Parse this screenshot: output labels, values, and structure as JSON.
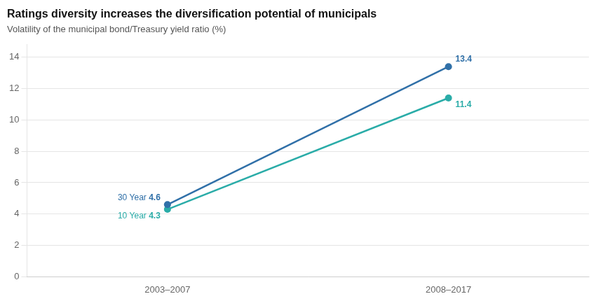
{
  "chart_data": {
    "type": "line",
    "title": "Ratings diversity increases the diversification potential of municipals",
    "subtitle": "Volatility of the municipal bond/Treasury yield ratio (%)",
    "categories": [
      "2003–2007",
      "2008–2017"
    ],
    "series": [
      {
        "name": "30 Year",
        "color": "#3070a8",
        "values": [
          4.6,
          13.4
        ]
      },
      {
        "name": "10 Year",
        "color": "#2aaca8",
        "values": [
          4.3,
          11.4
        ]
      }
    ],
    "ylim": [
      0,
      14.8
    ],
    "yticks": [
      0,
      2,
      4,
      6,
      8,
      10,
      12,
      14
    ],
    "grid": true,
    "data_labels": true,
    "marker": "circle"
  }
}
